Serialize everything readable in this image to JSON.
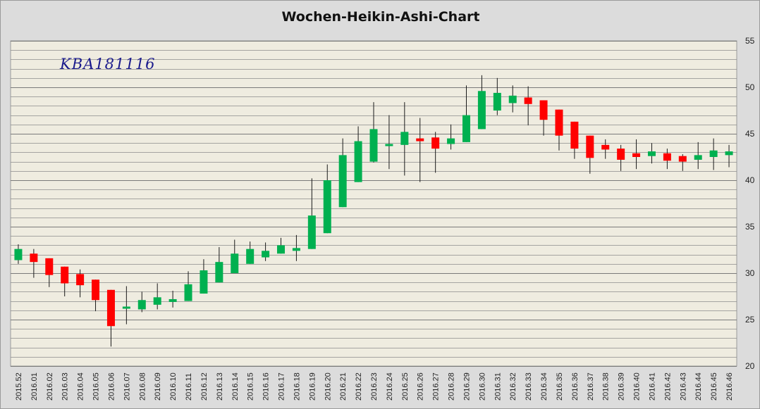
{
  "chart_data": {
    "type": "candlestick",
    "title": "Wochen-Heikin-Ashi-Chart",
    "watermark": "KBA181116",
    "ylim": [
      20,
      55
    ],
    "yticks": [
      20,
      25,
      30,
      35,
      40,
      45,
      50,
      55
    ],
    "ytick_labels": [
      "20",
      "25",
      "30",
      "35",
      "40",
      "45",
      "50",
      "55"
    ],
    "grid": true,
    "y_axis_side": "right",
    "colors": {
      "up": "#00b050",
      "down": "#ff0000",
      "plot_background": "#efece0",
      "frame_background": "#dcdcdc",
      "grid": "#8c8c8c"
    },
    "categories": [
      "2015.52",
      "2016.01",
      "2016.02",
      "2016.03",
      "2016.04",
      "2016.05",
      "2016.06",
      "2016.07",
      "2016.08",
      "2016.09",
      "2016.10",
      "2016.11",
      "2016.12",
      "2016.13",
      "2016.14",
      "2016.15",
      "2016.16",
      "2016.17",
      "2016.18",
      "2016.19",
      "2016.20",
      "2016.21",
      "2016.22",
      "2016.23",
      "2016.24",
      "2016.25",
      "2016.26",
      "2016.27",
      "2016.28",
      "2016.29",
      "2016.30",
      "2016.31",
      "2016.32",
      "2016.33",
      "2016.34",
      "2016.35",
      "2016.36",
      "2016.37",
      "2016.38",
      "2016.39",
      "2016.40",
      "2016.41",
      "2016.42",
      "2016.43",
      "2016.44",
      "2016.45",
      "2016.46"
    ],
    "open": [
      31.4,
      32.1,
      31.6,
      30.7,
      29.9,
      29.3,
      28.2,
      26.2,
      26.1,
      26.6,
      26.9,
      27.0,
      27.8,
      29.0,
      30.0,
      31.0,
      31.7,
      32.1,
      32.4,
      32.6,
      34.3,
      37.1,
      39.8,
      42.0,
      43.7,
      43.8,
      44.5,
      44.6,
      43.9,
      44.1,
      45.5,
      47.5,
      48.3,
      48.9,
      48.6,
      47.6,
      46.3,
      44.8,
      43.8,
      43.4,
      42.9,
      42.6,
      42.9,
      42.6,
      42.2,
      42.5,
      42.7
    ],
    "close": [
      32.6,
      31.2,
      29.8,
      28.9,
      28.7,
      27.1,
      24.3,
      26.4,
      27.1,
      27.4,
      27.2,
      28.8,
      30.3,
      31.2,
      32.1,
      32.6,
      32.4,
      33.0,
      32.7,
      36.2,
      40.0,
      42.7,
      44.2,
      45.5,
      43.9,
      45.2,
      44.2,
      43.4,
      44.5,
      47.0,
      49.6,
      49.4,
      49.1,
      48.2,
      46.5,
      44.8,
      43.4,
      42.4,
      43.3,
      42.2,
      42.5,
      43.1,
      42.1,
      42.0,
      42.7,
      43.2,
      43.1
    ],
    "high": [
      33.1,
      32.6,
      31.6,
      30.7,
      30.4,
      29.3,
      28.2,
      28.6,
      28.0,
      28.9,
      28.1,
      30.2,
      31.5,
      32.8,
      33.6,
      33.4,
      33.3,
      33.8,
      34.1,
      40.2,
      41.7,
      44.5,
      45.8,
      48.4,
      47.0,
      48.4,
      46.7,
      45.2,
      46.0,
      50.2,
      51.3,
      51.0,
      50.2,
      50.1,
      48.6,
      47.6,
      46.3,
      44.8,
      44.4,
      43.8,
      44.4,
      44.0,
      43.4,
      42.8,
      44.1,
      44.5,
      43.8
    ],
    "low": [
      31.0,
      29.5,
      28.5,
      27.5,
      27.4,
      25.9,
      22.1,
      24.5,
      25.8,
      26.1,
      26.3,
      27.0,
      27.8,
      29.0,
      30.0,
      31.0,
      31.3,
      32.1,
      31.3,
      32.6,
      34.3,
      37.1,
      39.8,
      41.9,
      41.2,
      40.5,
      39.8,
      40.8,
      43.3,
      44.1,
      45.5,
      47.0,
      47.3,
      45.9,
      44.8,
      43.2,
      42.3,
      40.7,
      42.3,
      41.0,
      41.2,
      41.8,
      41.2,
      41.0,
      41.2,
      41.1,
      41.4
    ]
  }
}
